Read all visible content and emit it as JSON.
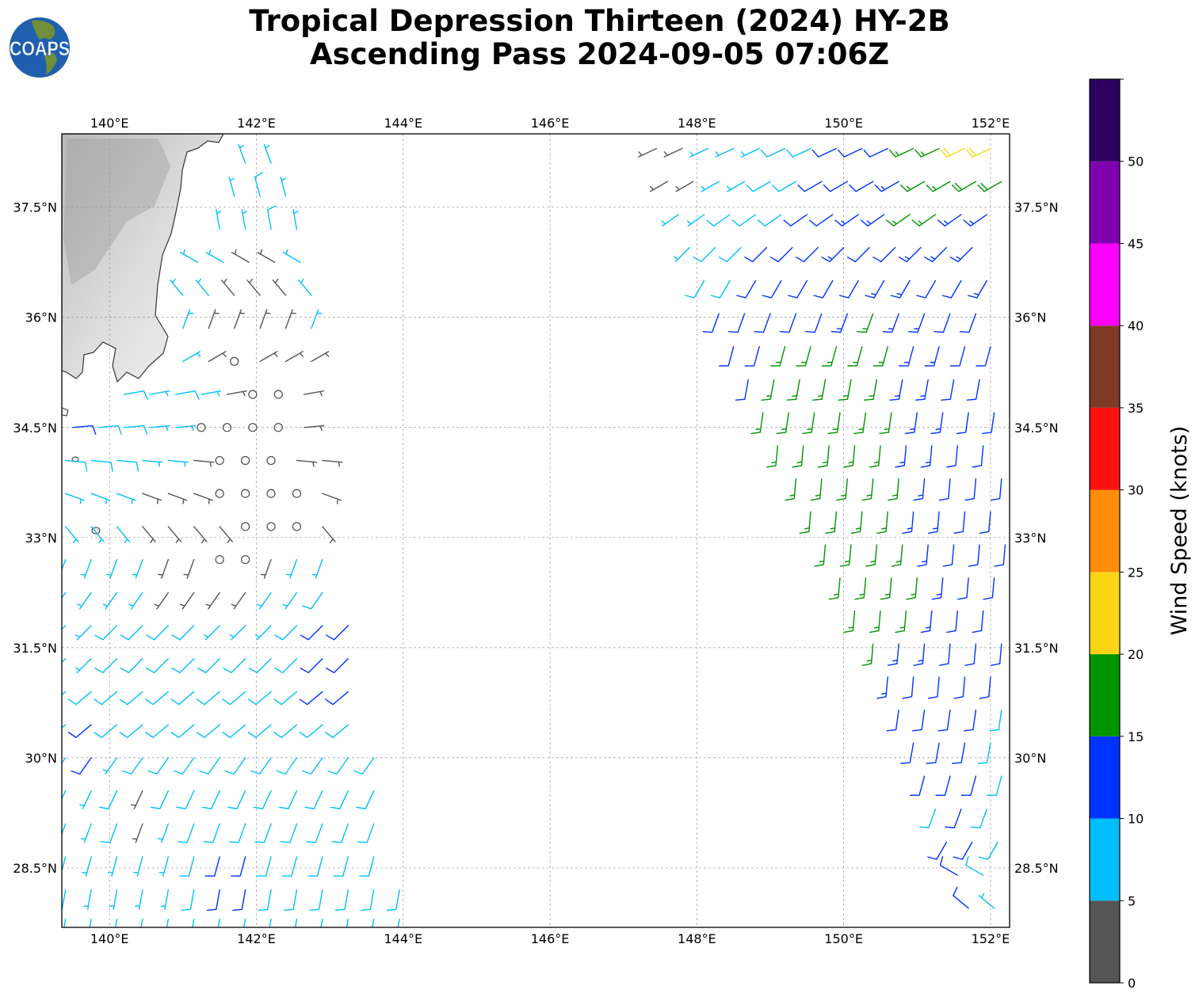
{
  "logo_text": "COAPS",
  "chart_data": {
    "type": "barbs",
    "title": [
      "Tropical Depression Thirteen (2024) HY-2B",
      "Ascending Pass 2024-09-05 07:06Z"
    ],
    "extent": {
      "lon": [
        139.35,
        152.26
      ],
      "lat": [
        27.69,
        38.5
      ]
    },
    "xticks": [
      {
        "v": 140,
        "label": "140°E"
      },
      {
        "v": 142,
        "label": "142°E"
      },
      {
        "v": 144,
        "label": "144°E"
      },
      {
        "v": 146,
        "label": "146°E"
      },
      {
        "v": 148,
        "label": "148°E"
      },
      {
        "v": 150,
        "label": "150°E"
      },
      {
        "v": 152,
        "label": "152°E"
      }
    ],
    "yticks": [
      {
        "v": 37.5,
        "label": "37.5°N"
      },
      {
        "v": 36,
        "label": "36°N"
      },
      {
        "v": 34.5,
        "label": "34.5°N"
      },
      {
        "v": 33,
        "label": "33°N"
      },
      {
        "v": 31.5,
        "label": "31.5°N"
      },
      {
        "v": 30,
        "label": "30°N"
      },
      {
        "v": 28.5,
        "label": "28.5°N"
      }
    ],
    "grid": true,
    "colorbar": {
      "label": "Wind Speed (knots)",
      "range": [
        0,
        55
      ],
      "ticks": [
        0,
        5,
        10,
        15,
        20,
        25,
        30,
        35,
        40,
        45,
        50
      ],
      "colors": [
        "#555555",
        "#00bfff",
        "#0033ff",
        "#009400",
        "#fdd517",
        "#ff8c0a",
        "#ff1010",
        "#7f3a25",
        "#ff00ff",
        "#8000b0",
        "#2e005f"
      ]
    },
    "calm_color": "#555555",
    "swaths": [
      {
        "name": "west",
        "dlon": 0.35,
        "rows": [
          {
            "lat": 38.1,
            "lon0": 141.85,
            "dir": 340,
            "spd": [
              7,
              7
            ]
          },
          {
            "lat": 37.65,
            "lon0": 141.7,
            "dir": 345,
            "spd": [
              7,
              8,
              7
            ]
          },
          {
            "lat": 37.2,
            "lon0": 141.5,
            "dir": 350,
            "spd": [
              6,
              7,
              8,
              7
            ]
          },
          {
            "lat": 36.75,
            "lon0": 141.2,
            "dir": 300,
            "spd": [
              7,
              6,
              4,
              3,
              6
            ]
          },
          {
            "lat": 36.3,
            "lon0": 141.0,
            "dir": 320,
            "spd": [
              6,
              7,
              4,
              3,
              4,
              6
            ]
          },
          {
            "lat": 35.85,
            "lon0": 141.0,
            "dir": 20,
            "spd": [
              5,
              4,
              3,
              3,
              4,
              6
            ]
          },
          {
            "lat": 35.4,
            "lon0": 141.0,
            "dir": 60,
            "spd": [
              6,
              4,
              0,
              3,
              4,
              4
            ]
          },
          {
            "lat": 34.95,
            "lon0": 140.2,
            "dir": 80,
            "spd": [
              8,
              7,
              8,
              6,
              4,
              0,
              0,
              3
            ]
          },
          {
            "lat": 34.5,
            "lon0": 139.5,
            "dir": 85,
            "spd": [
              10,
              8,
              8,
              7,
              6,
              0,
              0,
              0,
              0,
              4
            ]
          },
          {
            "lat": 34.05,
            "lon0": 139.4,
            "dir": 95,
            "spd": [
              9,
              8,
              8,
              7,
              6,
              4,
              0,
              0,
              0,
              3,
              4
            ]
          },
          {
            "lat": 33.6,
            "lon0": 139.4,
            "dir": 110,
            "spd": [
              7,
              7,
              6,
              4,
              4,
              3,
              0,
              0,
              0,
              0,
              4
            ]
          },
          {
            "lat": 33.15,
            "lon0": 139.4,
            "dir": 140,
            "spd": [
              7,
              6,
              5,
              4,
              4,
              3,
              3,
              0,
              0,
              0,
              4
            ]
          },
          {
            "lat": 32.7,
            "lon0": 139.4,
            "dir": 200,
            "spd": [
              7,
              7,
              6,
              5,
              4,
              4,
              0,
              0,
              3,
              6,
              7
            ]
          },
          {
            "lat": 32.25,
            "lon0": 139.4,
            "dir": 215,
            "spd": [
              6,
              7,
              7,
              6,
              4,
              4,
              4,
              3,
              6,
              7,
              8
            ]
          },
          {
            "lat": 31.8,
            "lon0": 139.4,
            "dir": 225,
            "spd": [
              7,
              7,
              8,
              8,
              8,
              8,
              7,
              7,
              7,
              8,
              11,
              12
            ]
          },
          {
            "lat": 31.35,
            "lon0": 139.4,
            "dir": 225,
            "spd": [
              7,
              7,
              8,
              8,
              8,
              8,
              8,
              8,
              8,
              9,
              11,
              12
            ]
          },
          {
            "lat": 30.9,
            "lon0": 139.4,
            "dir": 230,
            "spd": [
              7,
              8,
              8,
              8,
              8,
              8,
              8,
              8,
              8,
              9,
              10,
              12
            ]
          },
          {
            "lat": 30.45,
            "lon0": 139.4,
            "dir": 230,
            "spd": [
              7,
              11,
              8,
              8,
              8,
              8,
              8,
              8,
              8,
              9,
              9,
              9
            ]
          },
          {
            "lat": 30.0,
            "lon0": 139.4,
            "dir": 215,
            "spd": [
              7,
              11,
              7,
              8,
              8,
              8,
              8,
              8,
              8,
              9,
              9,
              9,
              9
            ]
          },
          {
            "lat": 29.55,
            "lon0": 139.4,
            "dir": 205,
            "spd": [
              7,
              7,
              8,
              4,
              8,
              8,
              8,
              8,
              8,
              8,
              8,
              9,
              9
            ]
          },
          {
            "lat": 29.1,
            "lon0": 139.4,
            "dir": 200,
            "spd": [
              7,
              7,
              8,
              3,
              7,
              8,
              8,
              8,
              8,
              8,
              8,
              8,
              8
            ]
          },
          {
            "lat": 28.65,
            "lon0": 139.4,
            "dir": 195,
            "spd": [
              7,
              7,
              7,
              7,
              7,
              8,
              11,
              12,
              8,
              8,
              8,
              8,
              8
            ]
          },
          {
            "lat": 28.2,
            "lon0": 139.4,
            "dir": 190,
            "spd": [
              7,
              7,
              7,
              7,
              7,
              8,
              11,
              12,
              8,
              8,
              8,
              8,
              8,
              8
            ]
          },
          {
            "lat": 27.8,
            "lon0": 139.4,
            "dir": 190,
            "spd": [
              7,
              7,
              7,
              7,
              7,
              7,
              8,
              8,
              8,
              8,
              8,
              8,
              8,
              8
            ]
          }
        ]
      },
      {
        "name": "east",
        "dlon": 0.35,
        "rows": [
          {
            "lat": 38.3,
            "lon0": 147.45,
            "dir": 245,
            "spd": [
              4,
              3,
              5,
              7,
              7,
              8,
              9,
              10,
              11,
              12,
              15,
              17,
              21,
              22
            ]
          },
          {
            "lat": 37.85,
            "lon0": 147.6,
            "dir": 240,
            "spd": [
              3,
              4,
              6,
              7,
              8,
              9,
              11,
              12,
              12,
              13,
              16,
              17,
              18,
              19
            ]
          },
          {
            "lat": 37.4,
            "lon0": 147.75,
            "dir": 235,
            "spd": [
              6,
              7,
              8,
              8,
              9,
              11,
              12,
              13,
              14,
              16,
              17,
              13,
              13
            ]
          },
          {
            "lat": 36.95,
            "lon0": 147.9,
            "dir": 225,
            "spd": [
              7,
              8,
              9,
              10,
              11,
              12,
              13,
              12,
              12,
              13,
              13,
              13
            ]
          },
          {
            "lat": 36.5,
            "lon0": 148.1,
            "dir": 210,
            "spd": [
              8,
              9,
              11,
              12,
              12,
              12,
              12,
              13,
              13,
              12,
              12,
              13
            ]
          },
          {
            "lat": 36.05,
            "lon0": 148.3,
            "dir": 200,
            "spd": [
              10,
              11,
              12,
              12,
              12,
              13,
              15,
              14,
              13,
              12,
              12
            ]
          },
          {
            "lat": 35.6,
            "lon0": 148.5,
            "dir": 195,
            "spd": [
              11,
              12,
              15,
              16,
              16,
              15,
              16,
              14,
              13,
              12,
              11
            ]
          },
          {
            "lat": 35.15,
            "lon0": 148.7,
            "dir": 190,
            "spd": [
              12,
              16,
              16,
              17,
              16,
              16,
              14,
              13,
              12,
              12
            ]
          },
          {
            "lat": 34.7,
            "lon0": 148.9,
            "dir": 188,
            "spd": [
              15,
              16,
              17,
              17,
              16,
              15,
              14,
              13,
              12,
              12
            ]
          },
          {
            "lat": 34.25,
            "lon0": 149.1,
            "dir": 185,
            "spd": [
              16,
              17,
              17,
              16,
              16,
              14,
              13,
              12,
              12
            ]
          },
          {
            "lat": 33.8,
            "lon0": 149.35,
            "dir": 185,
            "spd": [
              16,
              17,
              17,
              16,
              15,
              13,
              12,
              11,
              12
            ]
          },
          {
            "lat": 33.35,
            "lon0": 149.55,
            "dir": 185,
            "spd": [
              17,
              17,
              16,
              16,
              14,
              13,
              12,
              11
            ]
          },
          {
            "lat": 32.9,
            "lon0": 149.75,
            "dir": 185,
            "spd": [
              16,
              17,
              17,
              16,
              14,
              12,
              12,
              11
            ]
          },
          {
            "lat": 32.45,
            "lon0": 149.95,
            "dir": 185,
            "spd": [
              16,
              17,
              16,
              15,
              13,
              12,
              11
            ]
          },
          {
            "lat": 32.0,
            "lon0": 150.15,
            "dir": 185,
            "spd": [
              16,
              16,
              15,
              13,
              12,
              11
            ]
          },
          {
            "lat": 31.55,
            "lon0": 150.4,
            "dir": 185,
            "spd": [
              15,
              14,
              13,
              12,
              11,
              10
            ]
          },
          {
            "lat": 31.1,
            "lon0": 150.6,
            "dir": 185,
            "spd": [
              13,
              12,
              12,
              11,
              10
            ]
          },
          {
            "lat": 30.65,
            "lon0": 150.75,
            "dir": 188,
            "spd": [
              12,
              12,
              11,
              10,
              9
            ]
          },
          {
            "lat": 30.2,
            "lon0": 150.95,
            "dir": 190,
            "spd": [
              11,
              11,
              10,
              9
            ]
          },
          {
            "lat": 29.75,
            "lon0": 151.1,
            "dir": 195,
            "spd": [
              10,
              11,
              10,
              8
            ]
          },
          {
            "lat": 29.3,
            "lon0": 151.25,
            "dir": 200,
            "spd": [
              9,
              10,
              8
            ]
          },
          {
            "lat": 28.85,
            "lon0": 151.4,
            "dir": 210,
            "spd": [
              11,
              10,
              8
            ]
          },
          {
            "lat": 28.4,
            "lon0": 151.55,
            "dir": 300,
            "spd": [
              11,
              8
            ]
          },
          {
            "lat": 27.95,
            "lon0": 151.7,
            "dir": 310,
            "spd": [
              10,
              7
            ]
          }
        ]
      }
    ]
  }
}
